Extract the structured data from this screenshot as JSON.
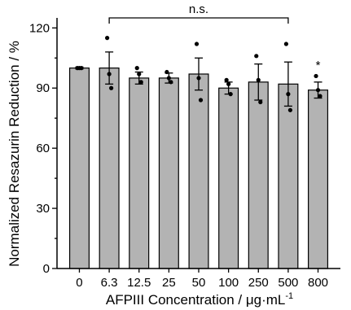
{
  "chart_data": {
    "type": "bar",
    "title": "",
    "xlabel": "AFPIII Concentration / μg·mL",
    "xlabel_superscript": "-1",
    "ylabel": "Normalized Resazurin Reduction / %",
    "ylim": [
      0,
      125
    ],
    "yticks": [
      0,
      30,
      60,
      90,
      120
    ],
    "categories": [
      "0",
      "6.3",
      "12.5",
      "25",
      "50",
      "100",
      "250",
      "500",
      "800"
    ],
    "values": [
      100,
      100,
      95,
      95,
      97,
      90,
      93,
      92,
      89
    ],
    "errors": [
      0.5,
      8,
      3,
      2.5,
      8,
      3,
      9,
      11,
      4
    ],
    "points": [
      [
        100,
        100,
        100
      ],
      [
        115,
        97,
        90
      ],
      [
        100,
        97,
        93
      ],
      [
        98,
        95,
        93
      ],
      [
        112,
        95,
        84
      ],
      [
        94,
        92,
        87
      ],
      [
        106,
        94,
        83
      ],
      [
        112,
        87,
        79
      ],
      [
        96,
        89,
        86
      ]
    ],
    "bar_color": "#b3b3b3",
    "annotations": {
      "ns_label": "n.s.",
      "ns_bracket_from": "6.3",
      "ns_bracket_to": "500",
      "ns_bracket_value": 125,
      "star_label": "*",
      "star_category": "800",
      "star_value": 101
    },
    "grid": false,
    "legend": "none"
  }
}
